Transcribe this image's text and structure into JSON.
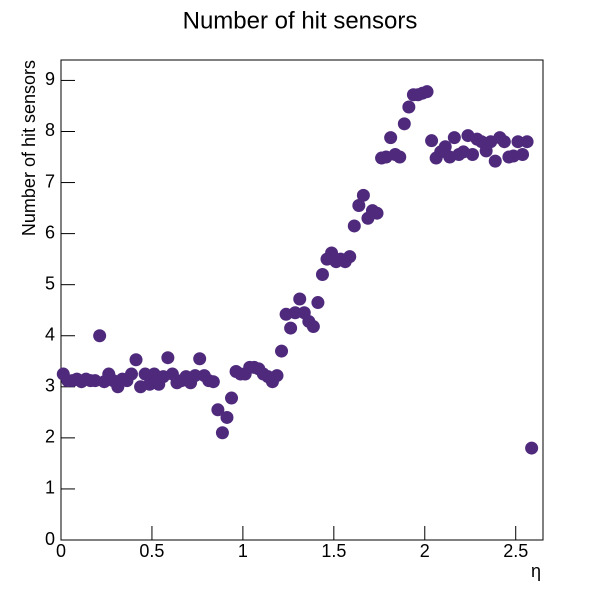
{
  "chart_data": {
    "type": "scatter",
    "title": "Number of hit sensors",
    "x_label": "η",
    "y_label": "Number of hit sensors",
    "color": "#4f2a7c",
    "xlim": [
      0,
      2.65
    ],
    "ylim": [
      0,
      9.4
    ],
    "xticks": [
      0,
      0.5,
      1,
      1.5,
      2,
      2.5
    ],
    "yticks": [
      0,
      1,
      2,
      3,
      4,
      5,
      6,
      7,
      8,
      9
    ],
    "x": [
      0.0125,
      0.0375,
      0.0625,
      0.0875,
      0.1125,
      0.1375,
      0.1625,
      0.1875,
      0.2125,
      0.2375,
      0.2625,
      0.2875,
      0.3125,
      0.3375,
      0.3625,
      0.3875,
      0.4125,
      0.4375,
      0.4625,
      0.4875,
      0.5125,
      0.5375,
      0.5625,
      0.5875,
      0.6125,
      0.6375,
      0.6625,
      0.6875,
      0.7125,
      0.7375,
      0.7625,
      0.7875,
      0.8125,
      0.8375,
      0.8625,
      0.8875,
      0.9125,
      0.9375,
      0.9625,
      0.9875,
      1.0125,
      1.0375,
      1.0625,
      1.0875,
      1.1125,
      1.1375,
      1.1625,
      1.1875,
      1.2125,
      1.2375,
      1.2625,
      1.2875,
      1.3125,
      1.3375,
      1.3625,
      1.3875,
      1.4125,
      1.4375,
      1.4625,
      1.4875,
      1.5125,
      1.5375,
      1.5625,
      1.5875,
      1.6125,
      1.6375,
      1.6625,
      1.6875,
      1.7125,
      1.7375,
      1.7625,
      1.7875,
      1.8125,
      1.8375,
      1.8625,
      1.8875,
      1.9125,
      1.9375,
      1.9625,
      1.9875,
      2.0125,
      2.0375,
      2.0625,
      2.0875,
      2.1125,
      2.1375,
      2.1625,
      2.1875,
      2.2125,
      2.2375,
      2.2625,
      2.2875,
      2.3125,
      2.3375,
      2.3625,
      2.3875,
      2.4125,
      2.4375,
      2.4625,
      2.4875,
      2.5125,
      2.5375,
      2.5625,
      2.5875
    ],
    "values": [
      3.25,
      3.12,
      3.12,
      3.15,
      3.1,
      3.15,
      3.12,
      3.12,
      4.0,
      3.1,
      3.25,
      3.12,
      3.0,
      3.15,
      3.12,
      3.25,
      3.53,
      3.0,
      3.25,
      3.05,
      3.25,
      3.05,
      3.2,
      3.57,
      3.25,
      3.08,
      3.12,
      3.2,
      3.08,
      3.22,
      3.55,
      3.22,
      3.12,
      3.1,
      2.55,
      2.1,
      2.4,
      2.78,
      3.3,
      3.25,
      3.25,
      3.38,
      3.38,
      3.35,
      3.25,
      3.2,
      3.1,
      3.22,
      3.7,
      4.42,
      4.15,
      4.45,
      4.72,
      4.45,
      4.28,
      4.18,
      4.65,
      5.2,
      5.5,
      5.62,
      5.45,
      5.5,
      5.45,
      5.55,
      6.15,
      6.55,
      6.75,
      6.3,
      6.45,
      6.4,
      7.48,
      7.5,
      7.88,
      7.55,
      7.5,
      8.15,
      8.48,
      8.72,
      8.72,
      8.75,
      8.78,
      7.82,
      7.48,
      7.6,
      7.7,
      7.5,
      7.88,
      7.55,
      7.6,
      7.92,
      7.55,
      7.85,
      7.8,
      7.62,
      7.8,
      7.42,
      7.88,
      7.8,
      7.5,
      7.52,
      7.8,
      7.55,
      7.8,
      1.8
    ]
  }
}
